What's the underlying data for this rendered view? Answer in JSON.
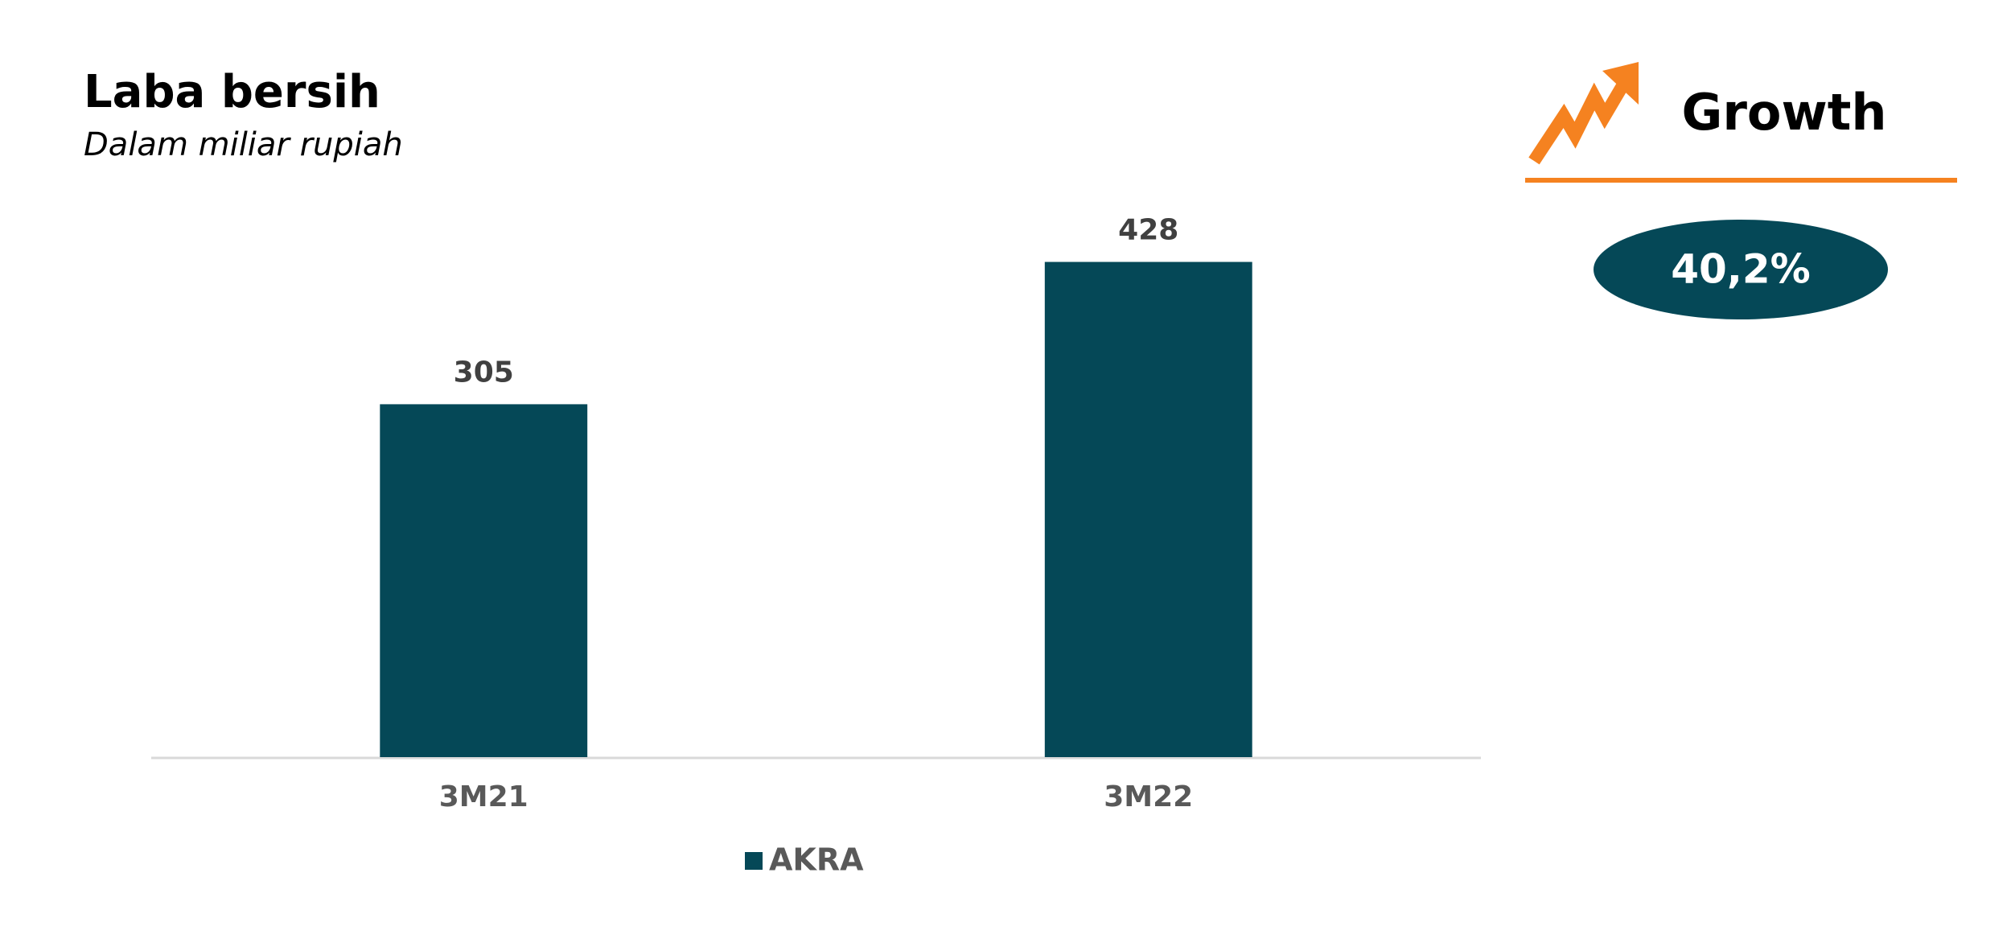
{
  "chart_data": {
    "type": "bar",
    "title": "Laba bersih",
    "subtitle": "Dalam miliar rupiah",
    "categories": [
      "3M21",
      "3M22"
    ],
    "series": [
      {
        "name": "AKRA",
        "color": "#054857",
        "values": [
          305,
          428
        ]
      }
    ],
    "ylim": [
      0,
      500
    ],
    "growth": {
      "title": "Growth",
      "value": 40.2,
      "value_label": "40,2%",
      "color": "#f58220"
    }
  }
}
